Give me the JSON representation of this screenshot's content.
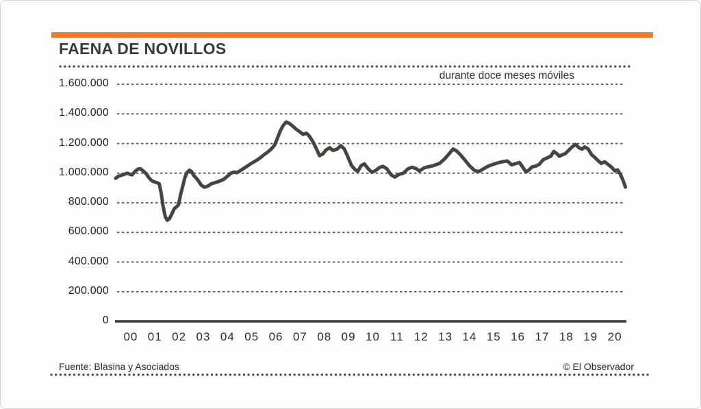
{
  "header": {
    "title": "FAENA DE NOVILLOS"
  },
  "footer": {
    "source": "Fuente: Blasina y Asociados",
    "credit": "© El Observador"
  },
  "theme": {
    "accent_orange": "#ED7D1F",
    "series_line": "#474440",
    "grid_line": "#4F4F4F",
    "axis_line": "#383431",
    "text": "#3A3A3A"
  },
  "chart_data": {
    "type": "line",
    "title": "FAENA DE NOVILLOS",
    "subtitle": "durante doce meses móviles",
    "xlabel": "",
    "ylabel": "",
    "ylim": [
      0,
      1600000
    ],
    "xlim_years": [
      2000,
      2021.07
    ],
    "grid": "horizontal-dashed",
    "legend_position": "none",
    "y_ticks": [
      {
        "value": 1600000,
        "label": "1.600.000"
      },
      {
        "value": 1400000,
        "label": "1.400.000"
      },
      {
        "value": 1200000,
        "label": "1.200.000"
      },
      {
        "value": 1000000,
        "label": "1.000.000"
      },
      {
        "value": 800000,
        "label": "800.000"
      },
      {
        "value": 600000,
        "label": "600.000"
      },
      {
        "value": 400000,
        "label": "400.000"
      },
      {
        "value": 200000,
        "label": "200.000"
      },
      {
        "value": 0,
        "label": "0"
      }
    ],
    "x_tick_labels": [
      "00",
      "01",
      "02",
      "03",
      "04",
      "05",
      "06",
      "07",
      "08",
      "09",
      "10",
      "11",
      "12",
      "13",
      "14",
      "15",
      "16",
      "17",
      "18",
      "19",
      "20"
    ],
    "series": [
      {
        "name": "durante doce meses móviles",
        "points": [
          [
            2000.0,
            965000
          ],
          [
            2000.12,
            980000
          ],
          [
            2000.22,
            985000
          ],
          [
            2000.35,
            992000
          ],
          [
            2000.48,
            1000000
          ],
          [
            2000.58,
            993000
          ],
          [
            2000.68,
            988000
          ],
          [
            2000.8,
            1012000
          ],
          [
            2000.92,
            1027000
          ],
          [
            2001.02,
            1030000
          ],
          [
            2001.12,
            1017000
          ],
          [
            2001.25,
            998000
          ],
          [
            2001.38,
            968000
          ],
          [
            2001.5,
            948000
          ],
          [
            2001.62,
            940000
          ],
          [
            2001.72,
            935000
          ],
          [
            2001.8,
            928000
          ],
          [
            2001.88,
            865000
          ],
          [
            2001.96,
            775000
          ],
          [
            2002.05,
            705000
          ],
          [
            2002.13,
            682000
          ],
          [
            2002.22,
            693000
          ],
          [
            2002.32,
            725000
          ],
          [
            2002.42,
            760000
          ],
          [
            2002.52,
            773000
          ],
          [
            2002.6,
            788000
          ],
          [
            2002.68,
            855000
          ],
          [
            2002.77,
            912000
          ],
          [
            2002.86,
            970000
          ],
          [
            2002.95,
            1005000
          ],
          [
            2003.05,
            1020000
          ],
          [
            2003.13,
            1012000
          ],
          [
            2003.22,
            985000
          ],
          [
            2003.32,
            968000
          ],
          [
            2003.42,
            948000
          ],
          [
            2003.53,
            920000
          ],
          [
            2003.66,
            905000
          ],
          [
            2003.8,
            912000
          ],
          [
            2003.95,
            928000
          ],
          [
            2004.1,
            936000
          ],
          [
            2004.28,
            945000
          ],
          [
            2004.46,
            958000
          ],
          [
            2004.62,
            980000
          ],
          [
            2004.76,
            1000000
          ],
          [
            2004.9,
            1008000
          ],
          [
            2005.0,
            1003000
          ],
          [
            2005.14,
            1016000
          ],
          [
            2005.3,
            1033000
          ],
          [
            2005.46,
            1050000
          ],
          [
            2005.6,
            1066000
          ],
          [
            2005.73,
            1078000
          ],
          [
            2005.87,
            1092000
          ],
          [
            2006.0,
            1107000
          ],
          [
            2006.14,
            1126000
          ],
          [
            2006.28,
            1142000
          ],
          [
            2006.42,
            1162000
          ],
          [
            2006.56,
            1188000
          ],
          [
            2006.68,
            1235000
          ],
          [
            2006.8,
            1285000
          ],
          [
            2006.92,
            1322000
          ],
          [
            2007.04,
            1345000
          ],
          [
            2007.16,
            1337000
          ],
          [
            2007.3,
            1320000
          ],
          [
            2007.45,
            1297000
          ],
          [
            2007.6,
            1280000
          ],
          [
            2007.74,
            1262000
          ],
          [
            2007.88,
            1270000
          ],
          [
            2008.0,
            1250000
          ],
          [
            2008.14,
            1215000
          ],
          [
            2008.28,
            1168000
          ],
          [
            2008.42,
            1118000
          ],
          [
            2008.56,
            1130000
          ],
          [
            2008.7,
            1158000
          ],
          [
            2008.84,
            1172000
          ],
          [
            2008.98,
            1153000
          ],
          [
            2009.14,
            1162000
          ],
          [
            2009.3,
            1185000
          ],
          [
            2009.44,
            1165000
          ],
          [
            2009.58,
            1115000
          ],
          [
            2009.74,
            1052000
          ],
          [
            2009.88,
            1026000
          ],
          [
            2010.0,
            1012000
          ],
          [
            2010.14,
            1050000
          ],
          [
            2010.27,
            1063000
          ],
          [
            2010.43,
            1030000
          ],
          [
            2010.58,
            1006000
          ],
          [
            2010.73,
            1017000
          ],
          [
            2010.9,
            1038000
          ],
          [
            2011.04,
            1046000
          ],
          [
            2011.2,
            1030000
          ],
          [
            2011.38,
            988000
          ],
          [
            2011.54,
            974000
          ],
          [
            2011.7,
            992000
          ],
          [
            2011.88,
            1000000
          ],
          [
            2012.08,
            1030000
          ],
          [
            2012.24,
            1040000
          ],
          [
            2012.4,
            1032000
          ],
          [
            2012.55,
            1014000
          ],
          [
            2012.74,
            1036000
          ],
          [
            2012.95,
            1044000
          ],
          [
            2013.15,
            1052000
          ],
          [
            2013.38,
            1066000
          ],
          [
            2013.58,
            1095000
          ],
          [
            2013.76,
            1128000
          ],
          [
            2013.94,
            1163000
          ],
          [
            2014.08,
            1150000
          ],
          [
            2014.24,
            1124000
          ],
          [
            2014.44,
            1086000
          ],
          [
            2014.62,
            1050000
          ],
          [
            2014.84,
            1016000
          ],
          [
            2015.02,
            1012000
          ],
          [
            2015.2,
            1030000
          ],
          [
            2015.4,
            1048000
          ],
          [
            2015.6,
            1060000
          ],
          [
            2015.8,
            1070000
          ],
          [
            2016.0,
            1078000
          ],
          [
            2016.18,
            1082000
          ],
          [
            2016.36,
            1056000
          ],
          [
            2016.52,
            1064000
          ],
          [
            2016.68,
            1072000
          ],
          [
            2016.82,
            1040000
          ],
          [
            2016.95,
            1008000
          ],
          [
            2017.06,
            1020000
          ],
          [
            2017.2,
            1042000
          ],
          [
            2017.36,
            1048000
          ],
          [
            2017.5,
            1060000
          ],
          [
            2017.66,
            1090000
          ],
          [
            2017.82,
            1103000
          ],
          [
            2017.98,
            1115000
          ],
          [
            2018.1,
            1147000
          ],
          [
            2018.22,
            1133000
          ],
          [
            2018.32,
            1115000
          ],
          [
            2018.45,
            1124000
          ],
          [
            2018.58,
            1133000
          ],
          [
            2018.72,
            1155000
          ],
          [
            2018.86,
            1178000
          ],
          [
            2019.0,
            1193000
          ],
          [
            2019.14,
            1172000
          ],
          [
            2019.26,
            1162000
          ],
          [
            2019.38,
            1177000
          ],
          [
            2019.52,
            1163000
          ],
          [
            2019.66,
            1125000
          ],
          [
            2019.8,
            1105000
          ],
          [
            2019.92,
            1086000
          ],
          [
            2020.06,
            1066000
          ],
          [
            2020.2,
            1077000
          ],
          [
            2020.35,
            1058000
          ],
          [
            2020.5,
            1038000
          ],
          [
            2020.62,
            1016000
          ],
          [
            2020.74,
            1022000
          ],
          [
            2020.86,
            988000
          ],
          [
            2020.96,
            952000
          ],
          [
            2021.06,
            906000
          ]
        ]
      }
    ]
  }
}
